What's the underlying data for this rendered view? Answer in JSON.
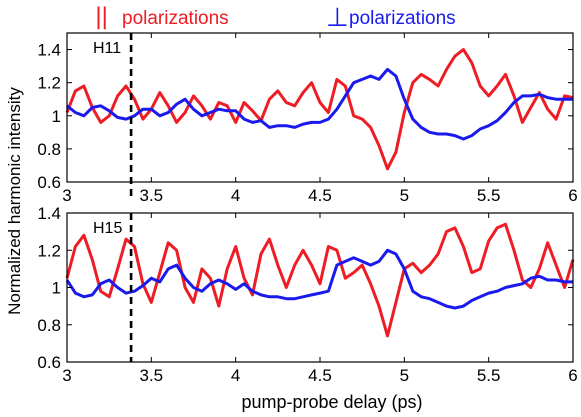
{
  "legend": {
    "parallel_symbol": "||",
    "parallel_text": "polarizations",
    "parallel_color": "#ee1c24",
    "perp_symbol": "⊥",
    "perp_text": "polarizations",
    "perp_color": "#1a1aee"
  },
  "ylabel": "Normalized harmonic intensity",
  "xlabel": "pump-probe delay (ps)",
  "chart_data": [
    {
      "type": "line",
      "panel_label": "H11",
      "xlim": [
        3,
        6
      ],
      "ylim": [
        0.6,
        1.5
      ],
      "xticks": [
        3,
        3.5,
        4,
        4.5,
        5,
        5.5,
        6
      ],
      "xtick_labels": [
        "3",
        "3.5",
        "4",
        "4.5",
        "5",
        "5.5",
        "6"
      ],
      "yticks": [
        0.6,
        0.8,
        1,
        1.2,
        1.4
      ],
      "ytick_labels": [
        "0.6",
        "0.8",
        "1",
        "1.2",
        "1.4"
      ],
      "marker_x": 3.38,
      "series": [
        {
          "color": "#ee1c24",
          "x": [
            3.0,
            3.05,
            3.1,
            3.15,
            3.2,
            3.25,
            3.3,
            3.35,
            3.4,
            3.45,
            3.5,
            3.55,
            3.6,
            3.65,
            3.7,
            3.75,
            3.8,
            3.85,
            3.9,
            3.95,
            4.0,
            4.05,
            4.1,
            4.15,
            4.2,
            4.25,
            4.3,
            4.35,
            4.4,
            4.45,
            4.5,
            4.55,
            4.6,
            4.65,
            4.7,
            4.75,
            4.8,
            4.85,
            4.9,
            4.95,
            5.0,
            5.05,
            5.1,
            5.15,
            5.2,
            5.25,
            5.3,
            5.35,
            5.4,
            5.45,
            5.5,
            5.55,
            5.6,
            5.65,
            5.7,
            5.75,
            5.8,
            5.85,
            5.9,
            5.95,
            6.0
          ],
          "values": [
            1.02,
            1.15,
            1.18,
            1.05,
            0.96,
            1.0,
            1.12,
            1.18,
            1.1,
            0.98,
            1.04,
            1.14,
            1.06,
            0.96,
            1.02,
            1.12,
            1.06,
            0.98,
            1.08,
            1.06,
            0.96,
            1.08,
            1.03,
            0.97,
            1.1,
            1.15,
            1.08,
            1.06,
            1.14,
            1.2,
            1.08,
            1.02,
            1.22,
            1.18,
            1.0,
            0.98,
            0.93,
            0.82,
            0.68,
            0.78,
            1.02,
            1.2,
            1.25,
            1.22,
            1.18,
            1.28,
            1.36,
            1.4,
            1.32,
            1.18,
            1.12,
            1.18,
            1.25,
            1.12,
            0.96,
            1.05,
            1.14,
            1.04,
            0.98,
            1.12,
            1.11
          ]
        },
        {
          "color": "#1a1aee",
          "x": [
            3.0,
            3.05,
            3.1,
            3.15,
            3.2,
            3.25,
            3.3,
            3.35,
            3.4,
            3.45,
            3.5,
            3.55,
            3.6,
            3.65,
            3.7,
            3.75,
            3.8,
            3.85,
            3.9,
            3.95,
            4.0,
            4.05,
            4.1,
            4.15,
            4.2,
            4.25,
            4.3,
            4.35,
            4.4,
            4.45,
            4.5,
            4.55,
            4.6,
            4.65,
            4.7,
            4.75,
            4.8,
            4.85,
            4.9,
            4.95,
            5.0,
            5.05,
            5.1,
            5.15,
            5.2,
            5.25,
            5.3,
            5.35,
            5.4,
            5.45,
            5.5,
            5.55,
            5.6,
            5.65,
            5.7,
            5.75,
            5.8,
            5.85,
            5.9,
            5.95,
            6.0
          ],
          "values": [
            1.06,
            1.02,
            1.0,
            1.05,
            1.06,
            1.03,
            0.99,
            0.98,
            1.0,
            1.04,
            1.04,
            1.0,
            1.02,
            1.07,
            1.1,
            1.04,
            1.0,
            1.02,
            1.04,
            1.03,
            1.03,
            0.98,
            0.96,
            0.97,
            0.93,
            0.94,
            0.94,
            0.93,
            0.95,
            0.96,
            0.96,
            0.98,
            1.04,
            1.12,
            1.2,
            1.22,
            1.24,
            1.22,
            1.28,
            1.24,
            1.1,
            0.98,
            0.93,
            0.9,
            0.89,
            0.89,
            0.88,
            0.86,
            0.88,
            0.92,
            0.94,
            0.97,
            1.02,
            1.08,
            1.12,
            1.12,
            1.13,
            1.11,
            1.1,
            1.1,
            1.1
          ]
        }
      ]
    },
    {
      "type": "line",
      "panel_label": "H15",
      "xlim": [
        3,
        6
      ],
      "ylim": [
        0.6,
        1.4
      ],
      "xticks": [
        3,
        3.5,
        4,
        4.5,
        5,
        5.5,
        6
      ],
      "xtick_labels": [
        "3",
        "3.5",
        "4",
        "4.5",
        "5",
        "5.5",
        "6"
      ],
      "yticks": [
        0.6,
        0.8,
        1,
        1.2,
        1.4
      ],
      "ytick_labels": [
        "0.6",
        "0.8",
        "1",
        "1.2",
        "1.4"
      ],
      "marker_x": 3.38,
      "series": [
        {
          "color": "#ee1c24",
          "x": [
            3.0,
            3.05,
            3.1,
            3.15,
            3.2,
            3.25,
            3.3,
            3.35,
            3.4,
            3.45,
            3.5,
            3.55,
            3.6,
            3.65,
            3.7,
            3.75,
            3.8,
            3.85,
            3.9,
            3.95,
            4.0,
            4.05,
            4.1,
            4.15,
            4.2,
            4.25,
            4.3,
            4.35,
            4.4,
            4.45,
            4.5,
            4.55,
            4.6,
            4.65,
            4.7,
            4.75,
            4.8,
            4.85,
            4.9,
            4.95,
            5.0,
            5.05,
            5.1,
            5.15,
            5.2,
            5.25,
            5.3,
            5.35,
            5.4,
            5.45,
            5.5,
            5.55,
            5.6,
            5.65,
            5.7,
            5.75,
            5.8,
            5.85,
            5.9,
            5.95,
            6.0
          ],
          "values": [
            1.05,
            1.22,
            1.28,
            1.15,
            0.98,
            0.95,
            1.1,
            1.26,
            1.22,
            1.02,
            0.92,
            1.08,
            1.24,
            1.2,
            1.0,
            0.92,
            1.1,
            1.05,
            0.9,
            1.1,
            1.22,
            1.05,
            0.96,
            1.18,
            1.26,
            1.12,
            1.0,
            1.12,
            1.2,
            1.12,
            1.02,
            1.22,
            1.2,
            1.05,
            1.08,
            1.12,
            1.02,
            0.9,
            0.74,
            0.92,
            1.1,
            1.13,
            1.08,
            1.12,
            1.18,
            1.3,
            1.32,
            1.22,
            1.08,
            1.1,
            1.25,
            1.32,
            1.34,
            1.2,
            1.04,
            1.0,
            1.1,
            1.24,
            1.12,
            1.0,
            1.15
          ]
        },
        {
          "color": "#1a1aee",
          "x": [
            3.0,
            3.05,
            3.1,
            3.15,
            3.2,
            3.25,
            3.3,
            3.35,
            3.4,
            3.45,
            3.5,
            3.55,
            3.6,
            3.65,
            3.7,
            3.75,
            3.8,
            3.85,
            3.9,
            3.95,
            4.0,
            4.05,
            4.1,
            4.15,
            4.2,
            4.25,
            4.3,
            4.35,
            4.4,
            4.45,
            4.5,
            4.55,
            4.6,
            4.65,
            4.7,
            4.75,
            4.8,
            4.85,
            4.9,
            4.95,
            5.0,
            5.05,
            5.1,
            5.15,
            5.2,
            5.25,
            5.3,
            5.35,
            5.4,
            5.45,
            5.5,
            5.55,
            5.6,
            5.65,
            5.7,
            5.75,
            5.8,
            5.85,
            5.9,
            5.95,
            6.0
          ],
          "values": [
            1.04,
            0.97,
            0.95,
            0.96,
            1.02,
            1.04,
            1.0,
            0.97,
            0.98,
            1.01,
            1.05,
            1.03,
            1.1,
            1.12,
            1.05,
            1.0,
            0.98,
            1.02,
            1.04,
            1.02,
            0.99,
            1.02,
            0.98,
            0.96,
            0.95,
            0.95,
            0.94,
            0.94,
            0.95,
            0.96,
            0.97,
            0.98,
            1.12,
            1.14,
            1.16,
            1.14,
            1.12,
            1.14,
            1.2,
            1.18,
            1.1,
            0.98,
            0.95,
            0.94,
            0.92,
            0.9,
            0.89,
            0.9,
            0.93,
            0.95,
            0.97,
            0.98,
            1.0,
            1.01,
            1.02,
            1.05,
            1.06,
            1.04,
            1.04,
            1.03,
            1.03
          ]
        }
      ]
    }
  ]
}
